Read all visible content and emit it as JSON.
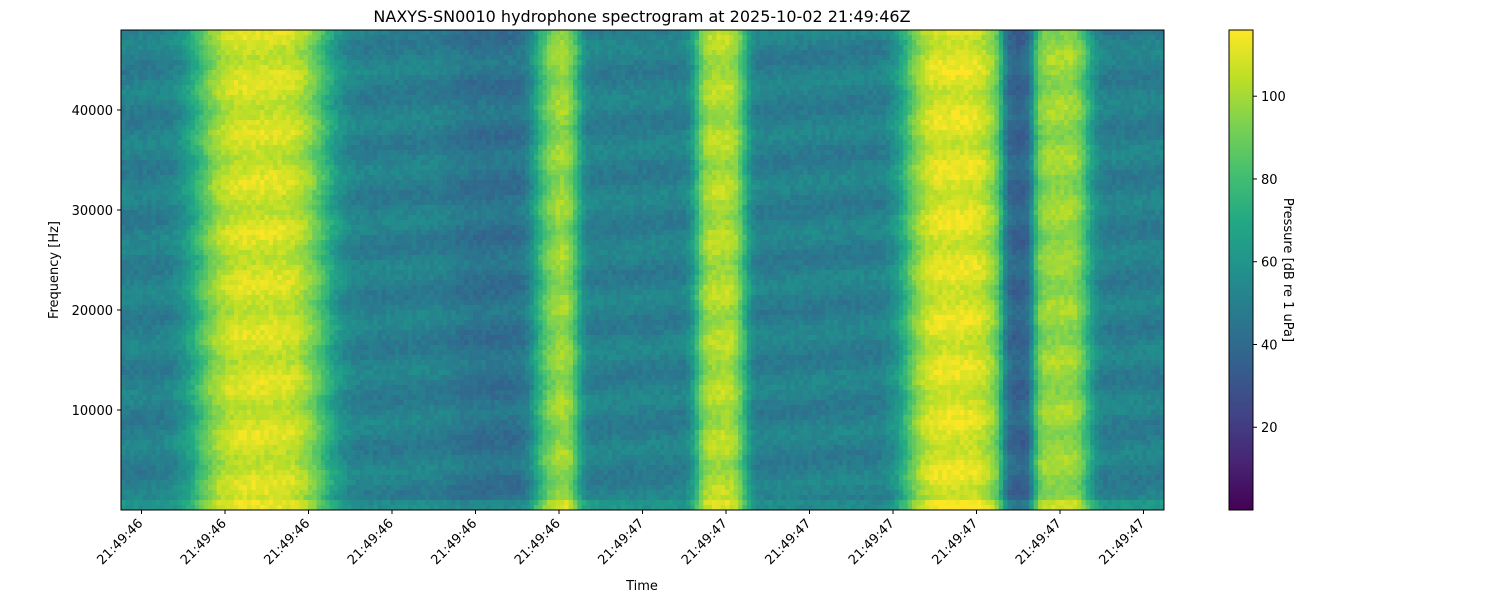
{
  "chart_data": {
    "type": "heatmap",
    "title": "NAXYS-SN0010 hydrophone spectrogram at 2025-10-02 21:49:46Z",
    "xlabel": "Time",
    "ylabel": "Frequency [Hz]",
    "colorbar_label": "Pressure [dB re 1 uPa]",
    "colormap": "viridis",
    "x_tick_labels": [
      "21:49:46",
      "21:49:46",
      "21:49:46",
      "21:49:46",
      "21:49:46",
      "21:49:46",
      "21:49:47",
      "21:49:47",
      "21:49:47",
      "21:49:47",
      "21:49:47",
      "21:49:47",
      "21:49:47"
    ],
    "y_ticks": [
      10000,
      20000,
      30000,
      40000
    ],
    "ylim": [
      0,
      48000
    ],
    "colorbar_ticks": [
      20,
      40,
      60,
      80,
      100
    ],
    "clim": [
      0,
      116
    ],
    "background_level_db": 50,
    "bright_bands": [
      {
        "x_range": [
          0.08,
          0.19
        ],
        "level_db": 108
      },
      {
        "x_range": [
          0.4,
          0.43
        ],
        "level_db": 100
      },
      {
        "x_range": [
          0.56,
          0.59
        ],
        "level_db": 102
      },
      {
        "x_range": [
          0.76,
          0.84
        ],
        "level_db": 110
      },
      {
        "x_range": [
          0.88,
          0.92
        ],
        "level_db": 98
      }
    ],
    "dark_bands": [
      {
        "x_range": [
          0.85,
          0.87
        ],
        "level_db": 32
      },
      {
        "x_range": [
          0.32,
          0.4
        ],
        "level_db": 42
      }
    ]
  }
}
